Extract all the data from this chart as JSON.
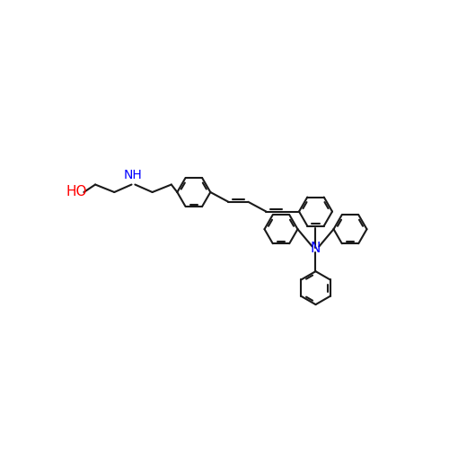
{
  "bg_color": "#ffffff",
  "bond_color": "#1a1a1a",
  "N_color": "#0000ff",
  "O_color": "#ff0000",
  "bond_width": 1.5,
  "font_size": 11,
  "fig_size": [
    5.0,
    5.0
  ],
  "dpi": 100,
  "xlim": [
    0,
    10
  ],
  "ylim": [
    0,
    10
  ]
}
